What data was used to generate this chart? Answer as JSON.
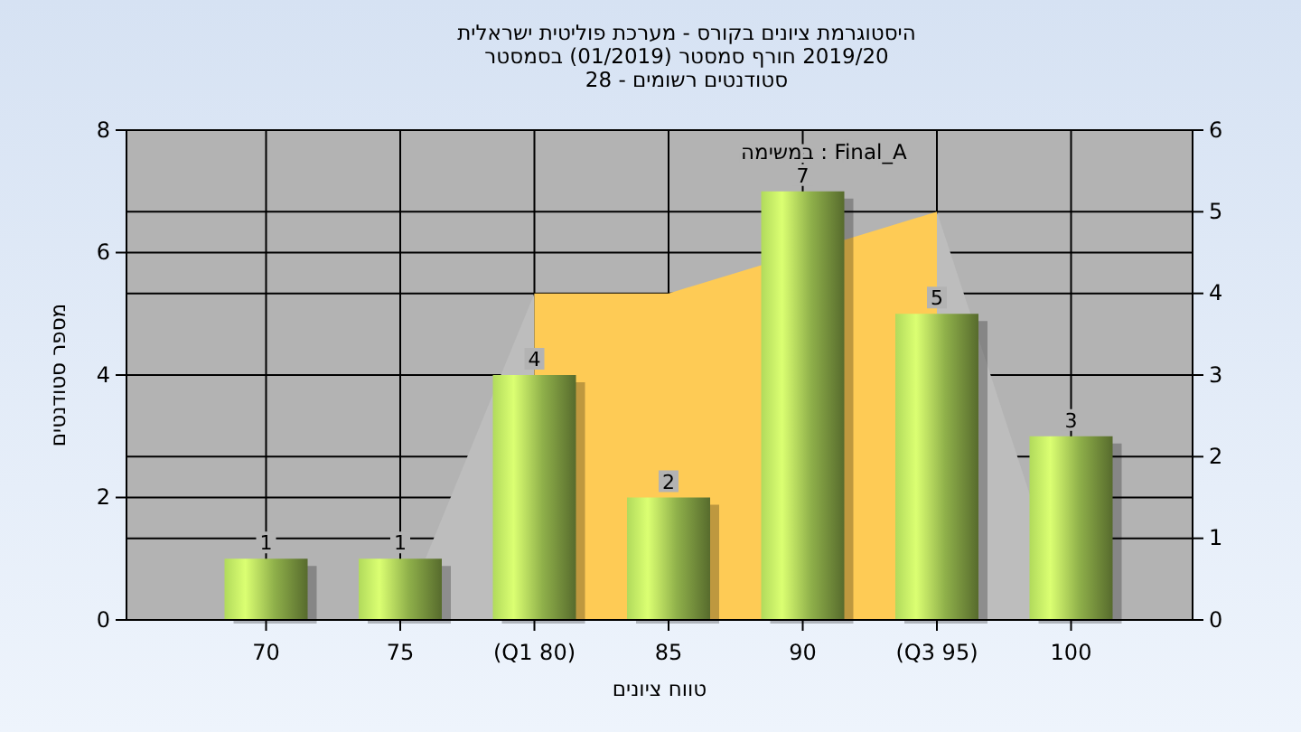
{
  "chart_data": {
    "type": "bar",
    "title": "היסטוגרמת ציונים בקורס - מערכת פוליטית ישראלית",
    "subtitle": "2019/20 חורף סמסטר (01/2019) בסמסטר\nסטודנטים רשומים - 28",
    "xlabel": "טווח ציונים",
    "ylabel": "מספר סטודנטים",
    "annotations": [
      "Final_A : במשימה"
    ],
    "categories": [
      "70",
      "75",
      "(Q1 80)",
      "85",
      "90",
      "(Q3 95)",
      "100"
    ],
    "series": [
      {
        "type": "area",
        "axis": "y2",
        "color": "#bdbdbd",
        "values": [
          null,
          0,
          4,
          null,
          null,
          null,
          null
        ]
      },
      {
        "type": "area",
        "axis": "y2",
        "color": "#bdbdbd",
        "values": [
          null,
          null,
          null,
          null,
          null,
          5,
          0
        ]
      },
      {
        "type": "area",
        "axis": "y2",
        "color": "#fecb55",
        "values": [
          null,
          null,
          4,
          4,
          null,
          5,
          null
        ]
      },
      {
        "color": "#8fb04a",
        "values": [
          1,
          1,
          4,
          2,
          7,
          5,
          3
        ],
        "value_labels": [
          "1",
          "1",
          "4",
          "2",
          "7",
          "5",
          "3"
        ]
      }
    ],
    "ylim": [
      0,
      8
    ],
    "yticks": [
      0,
      2,
      4,
      6,
      8
    ],
    "y2lim": [
      0,
      6
    ],
    "y2ticks": [
      0,
      1,
      2,
      3,
      4,
      5,
      6
    ],
    "grid": true,
    "legend": false
  }
}
